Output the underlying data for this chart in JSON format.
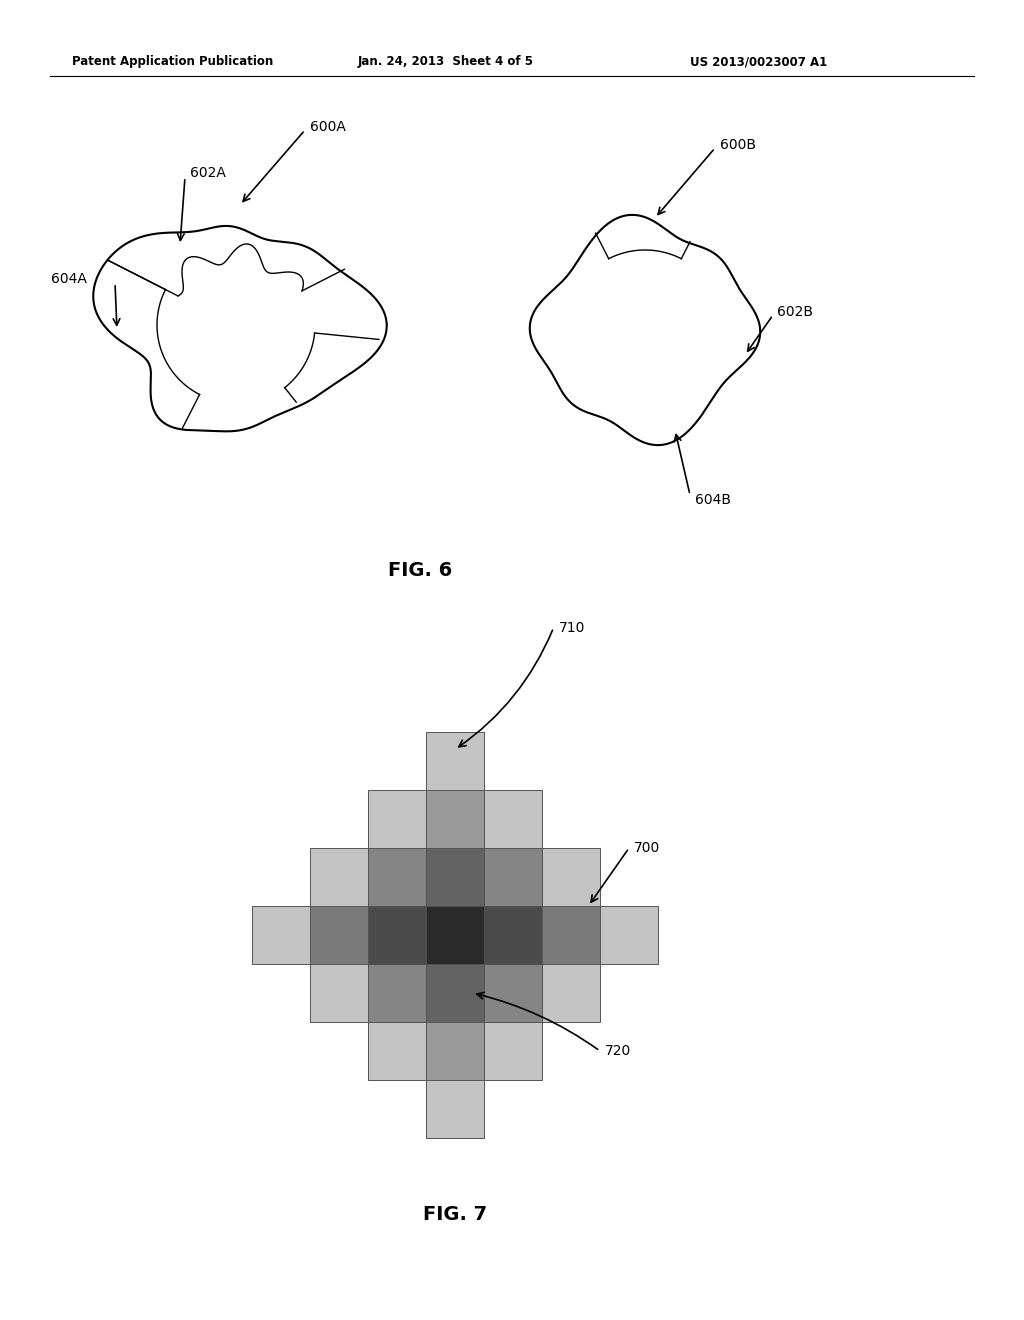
{
  "header_left": "Patent Application Publication",
  "header_mid": "Jan. 24, 2013  Sheet 4 of 5",
  "header_right": "US 2013/0023007 A1",
  "fig6_label": "FIG. 6",
  "fig7_label": "FIG. 7",
  "label_600A": "600A",
  "label_602A": "602A",
  "label_604A": "604A",
  "label_600B": "600B",
  "label_602B": "602B",
  "label_604B": "604B",
  "label_700": "700",
  "label_710": "710",
  "label_720": "720",
  "bg_color": "#ffffff",
  "line_color": "#000000",
  "text_color": "#000000"
}
